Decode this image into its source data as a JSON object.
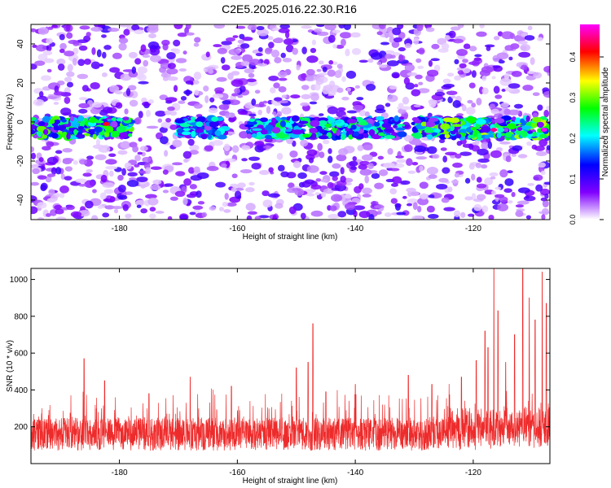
{
  "title": "C2E5.2025.016.22.30.R16",
  "chart_data": [
    {
      "type": "heatmap",
      "xlabel": "Height of straight line (km)",
      "ylabel": "Frequency (Hz)",
      "xlim": [
        -195,
        -107
      ],
      "ylim": [
        -50,
        50
      ],
      "xticks": [
        -180,
        -160,
        -140,
        -120
      ],
      "xtick_labels": [
        "-180",
        "-160",
        "-140",
        "-120"
      ],
      "yticks": [
        40,
        20,
        0,
        -20,
        -40
      ],
      "ytick_labels": [
        "40",
        "20",
        "0",
        "-20",
        "-40"
      ],
      "grid": false,
      "description_band": "strong signal band near 0 to -5 Hz across full height range",
      "colorbar": {
        "label": "Normalized spectral amplitude",
        "range": [
          0.0,
          0.48
        ],
        "ticks": [
          0.0,
          0.1,
          0.2,
          0.3,
          0.4
        ],
        "tick_labels": [
          "0.0",
          "0.1",
          "0.2",
          "0.3",
          "0.4"
        ],
        "colors": [
          "#ffffff",
          "#8000ff",
          "#0000ff",
          "#00ffff",
          "#00ff00",
          "#ffff00",
          "#ff0000",
          "#ff00ff"
        ]
      },
      "band": {
        "center_hz": -3,
        "half_width_hz": 5,
        "segments": [
          {
            "from": -195,
            "to": -178,
            "intensity": 0.25
          },
          {
            "from": -170,
            "to": -162,
            "intensity": 0.18
          },
          {
            "from": -158,
            "to": -132,
            "intensity": 0.22
          },
          {
            "from": -130,
            "to": -107,
            "intensity": 0.28
          }
        ],
        "peaks": [
          {
            "x": -182.2,
            "y": -1,
            "value": 0.42
          },
          {
            "x": -116.5,
            "y": -4,
            "value": 0.45
          },
          {
            "x": -108.0,
            "y": -4,
            "value": 0.48
          }
        ]
      }
    },
    {
      "type": "line",
      "xlabel": "Height of straight line (km)",
      "ylabel": "SNR (10 * v/v)",
      "xlim": [
        -195,
        -107
      ],
      "ylim": [
        0,
        1060
      ],
      "xticks": [
        -180,
        -160,
        -140,
        -120
      ],
      "xtick_labels": [
        "-180",
        "-160",
        "-140",
        "-120"
      ],
      "yticks": [
        200,
        400,
        600,
        800,
        1000
      ],
      "ytick_labels": [
        "200",
        "400",
        "600",
        "800",
        "1000"
      ],
      "color": "#ee2b2b",
      "grid": false,
      "baseline": 160,
      "noise_amplitude": 90,
      "spikes": [
        {
          "x": -186.0,
          "y": 570
        },
        {
          "x": -182.5,
          "y": 450
        },
        {
          "x": -175.0,
          "y": 380
        },
        {
          "x": -168.0,
          "y": 470
        },
        {
          "x": -161.0,
          "y": 420
        },
        {
          "x": -150.0,
          "y": 520
        },
        {
          "x": -148.0,
          "y": 550
        },
        {
          "x": -147.2,
          "y": 760
        },
        {
          "x": -145.0,
          "y": 390
        },
        {
          "x": -140.0,
          "y": 430
        },
        {
          "x": -131.0,
          "y": 480
        },
        {
          "x": -127.0,
          "y": 430
        },
        {
          "x": -122.0,
          "y": 470
        },
        {
          "x": -119.5,
          "y": 560
        },
        {
          "x": -118.0,
          "y": 720
        },
        {
          "x": -117.5,
          "y": 630
        },
        {
          "x": -116.5,
          "y": 1060
        },
        {
          "x": -115.8,
          "y": 830
        },
        {
          "x": -114.5,
          "y": 550
        },
        {
          "x": -113.0,
          "y": 700
        },
        {
          "x": -111.6,
          "y": 1060
        },
        {
          "x": -110.5,
          "y": 900
        },
        {
          "x": -109.5,
          "y": 780
        },
        {
          "x": -108.3,
          "y": 1040
        },
        {
          "x": -107.6,
          "y": 870
        }
      ]
    }
  ]
}
